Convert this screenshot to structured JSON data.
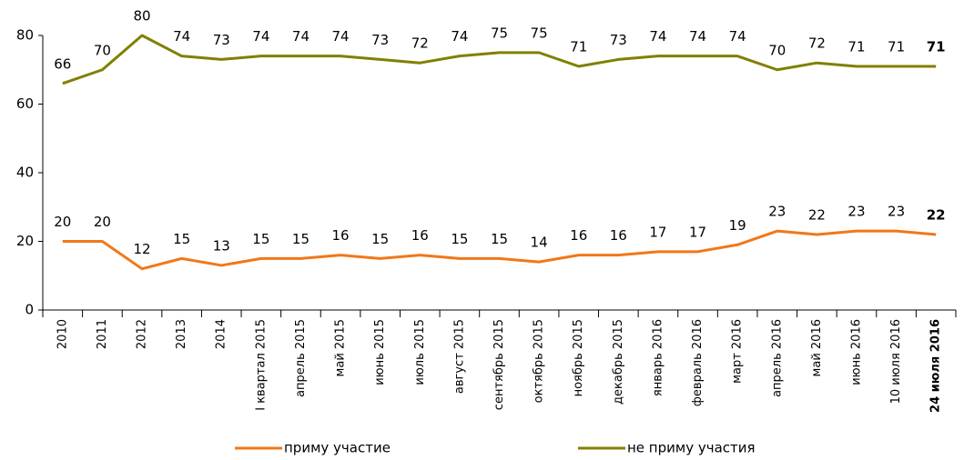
{
  "chart_data": {
    "type": "line",
    "categories": [
      "2010",
      "2011",
      "2012",
      "2013",
      "2014",
      "I квартал 2015",
      "апрель 2015",
      "май 2015",
      "июнь 2015",
      "июль 2015",
      "август 2015",
      "сентябрь 2015",
      "октябрь 2015",
      "ноябрь 2015",
      "декабрь 2015",
      "январь 2016",
      "февраль 2016",
      "март 2016",
      "апрель 2016",
      "май 2016",
      "июнь 2016",
      "10 июля 2016",
      "24 июля 2016"
    ],
    "series": [
      {
        "name": "приму участие",
        "color": "#f07819",
        "values": [
          20,
          20,
          12,
          15,
          13,
          15,
          15,
          16,
          15,
          16,
          15,
          15,
          14,
          16,
          16,
          17,
          17,
          19,
          23,
          22,
          23,
          23,
          22
        ]
      },
      {
        "name": "не приму участия",
        "color": "#808000",
        "values": [
          66,
          70,
          80,
          74,
          73,
          74,
          74,
          74,
          73,
          72,
          74,
          75,
          75,
          71,
          73,
          74,
          74,
          74,
          70,
          72,
          71,
          71,
          71
        ]
      }
    ],
    "ylim": [
      0,
      80
    ],
    "yticks": [
      0,
      20,
      40,
      60,
      80
    ],
    "grid": false,
    "legend": "bottom"
  }
}
